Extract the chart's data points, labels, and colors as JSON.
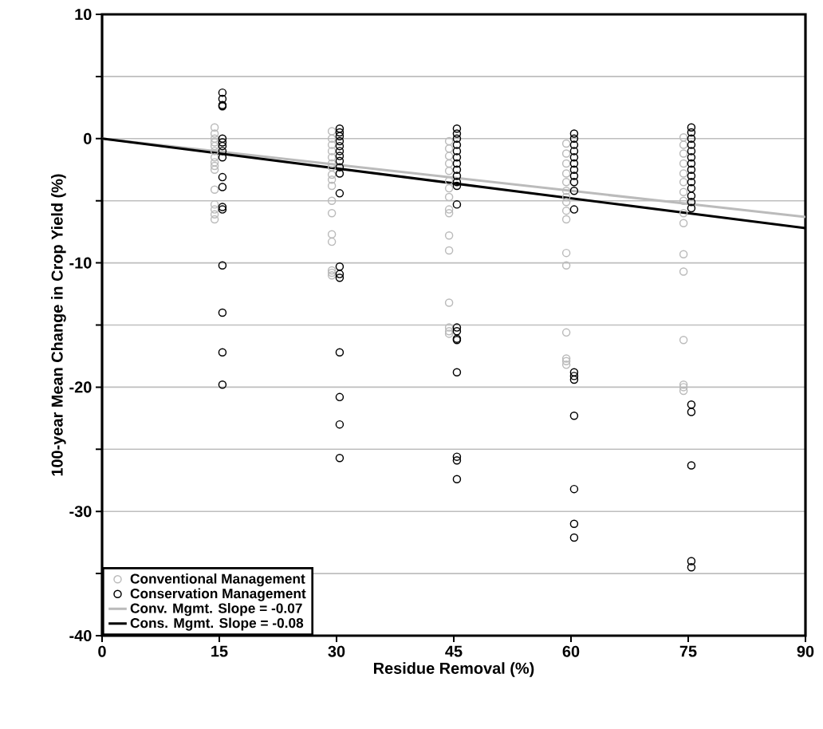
{
  "chart_data": {
    "type": "scatter",
    "xlabel": "Residue Removal (%)",
    "ylabel": "100-year Mean Change in Crop Yield (%)",
    "xlim": [
      0,
      90
    ],
    "ylim": [
      -40,
      10
    ],
    "xticks": [
      0,
      15,
      30,
      45,
      60,
      75,
      90
    ],
    "yticks": [
      -40,
      {
        "value": -35,
        "label": null
      },
      -30,
      {
        "value": -25,
        "label": null
      },
      -20,
      {
        "value": -15,
        "label": null
      },
      -10,
      {
        "value": -5,
        "label": null
      },
      0,
      {
        "value": 5,
        "label": null
      },
      10
    ],
    "grid": "y",
    "legend": "bottom left",
    "marker": "circle",
    "series": [
      {
        "name": "Conventional Management",
        "color": "#bbbbbb",
        "x": [
          14.4,
          14.4,
          14.4,
          14.4,
          14.4,
          14.4,
          14.4,
          14.4,
          14.4,
          14.4,
          14.4,
          14.4,
          14.4,
          14.4,
          14.4,
          29.4,
          29.4,
          29.4,
          29.4,
          29.4,
          29.4,
          29.4,
          29.4,
          29.4,
          29.4,
          29.4,
          29.4,
          29.4,
          29.4,
          29.4,
          29.4,
          29.4,
          44.4,
          44.4,
          44.4,
          44.4,
          44.4,
          44.4,
          44.4,
          44.4,
          44.4,
          44.4,
          44.4,
          44.4,
          44.4,
          44.4,
          44.4,
          44.4,
          59.4,
          59.4,
          59.4,
          59.4,
          59.4,
          59.4,
          59.4,
          59.4,
          59.4,
          59.4,
          59.4,
          59.4,
          59.4,
          59.4,
          59.4,
          59.4,
          74.4,
          74.4,
          74.4,
          74.4,
          74.4,
          74.4,
          74.4,
          74.4,
          74.4,
          74.4,
          74.4,
          74.4,
          74.4,
          74.4,
          74.4,
          74.4
        ],
        "values": [
          0.9,
          0.4,
          0,
          -0.3,
          -0.6,
          -1.0,
          -1.5,
          -1.9,
          -2.2,
          -2.5,
          -4.1,
          -5.3,
          -5.7,
          -6.1,
          -6.5,
          0.6,
          0,
          -0.5,
          -1.0,
          -1.5,
          -2.0,
          -2.3,
          -2.9,
          -3.3,
          -3.8,
          -5.0,
          -6.0,
          -7.7,
          -8.3,
          -10.6,
          -10.8,
          -11.0,
          -0.2,
          -0.8,
          -1.4,
          -2.0,
          -2.6,
          -3.4,
          -4.0,
          -4.7,
          -5.7,
          -6.0,
          -7.8,
          -9.0,
          -13.2,
          -15.2,
          -15.5,
          -15.7,
          -0.4,
          -1.2,
          -2.0,
          -2.8,
          -3.5,
          -4.2,
          -4.7,
          -5.1,
          -5.8,
          -6.5,
          -9.2,
          -10.2,
          -15.6,
          -17.7,
          -17.9,
          -18.2,
          0.1,
          -0.5,
          -1.2,
          -2.0,
          -2.8,
          -3.5,
          -4.3,
          -5.0,
          -6.0,
          -6.8,
          -9.3,
          -10.7,
          -16.2,
          -19.8,
          -20.0,
          -20.3
        ]
      },
      {
        "name": "Conservation Management",
        "color": "#000000",
        "x": [
          15.4,
          15.4,
          15.4,
          15.4,
          15.4,
          15.4,
          15.4,
          15.4,
          15.4,
          15.4,
          15.4,
          15.4,
          15.4,
          15.4,
          15.4,
          15.4,
          15.4,
          30.4,
          30.4,
          30.4,
          30.4,
          30.4,
          30.4,
          30.4,
          30.4,
          30.4,
          30.4,
          30.4,
          30.4,
          30.4,
          30.4,
          30.4,
          30.4,
          30.4,
          30.4,
          45.4,
          45.4,
          45.4,
          45.4,
          45.4,
          45.4,
          45.4,
          45.4,
          45.4,
          45.4,
          45.4,
          45.4,
          45.4,
          45.4,
          45.4,
          45.4,
          45.4,
          45.4,
          45.4,
          45.4,
          60.4,
          60.4,
          60.4,
          60.4,
          60.4,
          60.4,
          60.4,
          60.4,
          60.4,
          60.4,
          60.4,
          60.4,
          60.4,
          60.4,
          60.4,
          60.4,
          60.4,
          60.4,
          75.4,
          75.4,
          75.4,
          75.4,
          75.4,
          75.4,
          75.4,
          75.4,
          75.4,
          75.4,
          75.4,
          75.4,
          75.4,
          75.4,
          75.4,
          75.4,
          75.4,
          75.4,
          75.4
        ],
        "values": [
          3.7,
          3.2,
          2.7,
          2.6,
          0,
          -0.3,
          -0.6,
          -1.0,
          -1.5,
          -3.1,
          -3.9,
          -5.5,
          -5.7,
          -10.2,
          -14.0,
          -17.2,
          -19.8,
          0.8,
          0.5,
          0.2,
          -0.2,
          -0.6,
          -1.0,
          -1.4,
          -1.8,
          -2.3,
          -2.8,
          -4.4,
          -10.3,
          -10.9,
          -11.2,
          -17.2,
          -20.8,
          -23.0,
          -25.7,
          0.8,
          0.4,
          0,
          -0.5,
          -1.0,
          -1.5,
          -2.0,
          -2.5,
          -3.0,
          -3.5,
          -3.8,
          -5.3,
          -15.2,
          -15.5,
          -16.1,
          -16.2,
          -18.8,
          -25.6,
          -25.9,
          -27.4,
          0.4,
          0,
          -0.5,
          -1.0,
          -1.5,
          -2.0,
          -2.5,
          -3.0,
          -3.5,
          -4.2,
          -5.7,
          -18.8,
          -19.1,
          -19.4,
          -22.3,
          -28.2,
          -31.0,
          -32.1,
          0.9,
          0.5,
          0,
          -0.5,
          -1.0,
          -1.5,
          -2.0,
          -2.5,
          -3.0,
          -3.5,
          -4.0,
          -4.6,
          -5.1,
          -5.6,
          -21.4,
          -22.0,
          -26.3,
          -34.0,
          -34.5
        ]
      },
      {
        "name": "Conv. Mgmt. Slope = -0.07",
        "type": "line",
        "marker": "none",
        "color": "#bbbbbb",
        "x": [
          0,
          90
        ],
        "values": [
          0,
          -6.3
        ]
      },
      {
        "name": "Cons. Mgmt. Slope = -0.08",
        "type": "line",
        "marker": "none",
        "color": "#000000",
        "x": [
          0,
          90
        ],
        "values": [
          0,
          -7.2
        ]
      }
    ]
  }
}
